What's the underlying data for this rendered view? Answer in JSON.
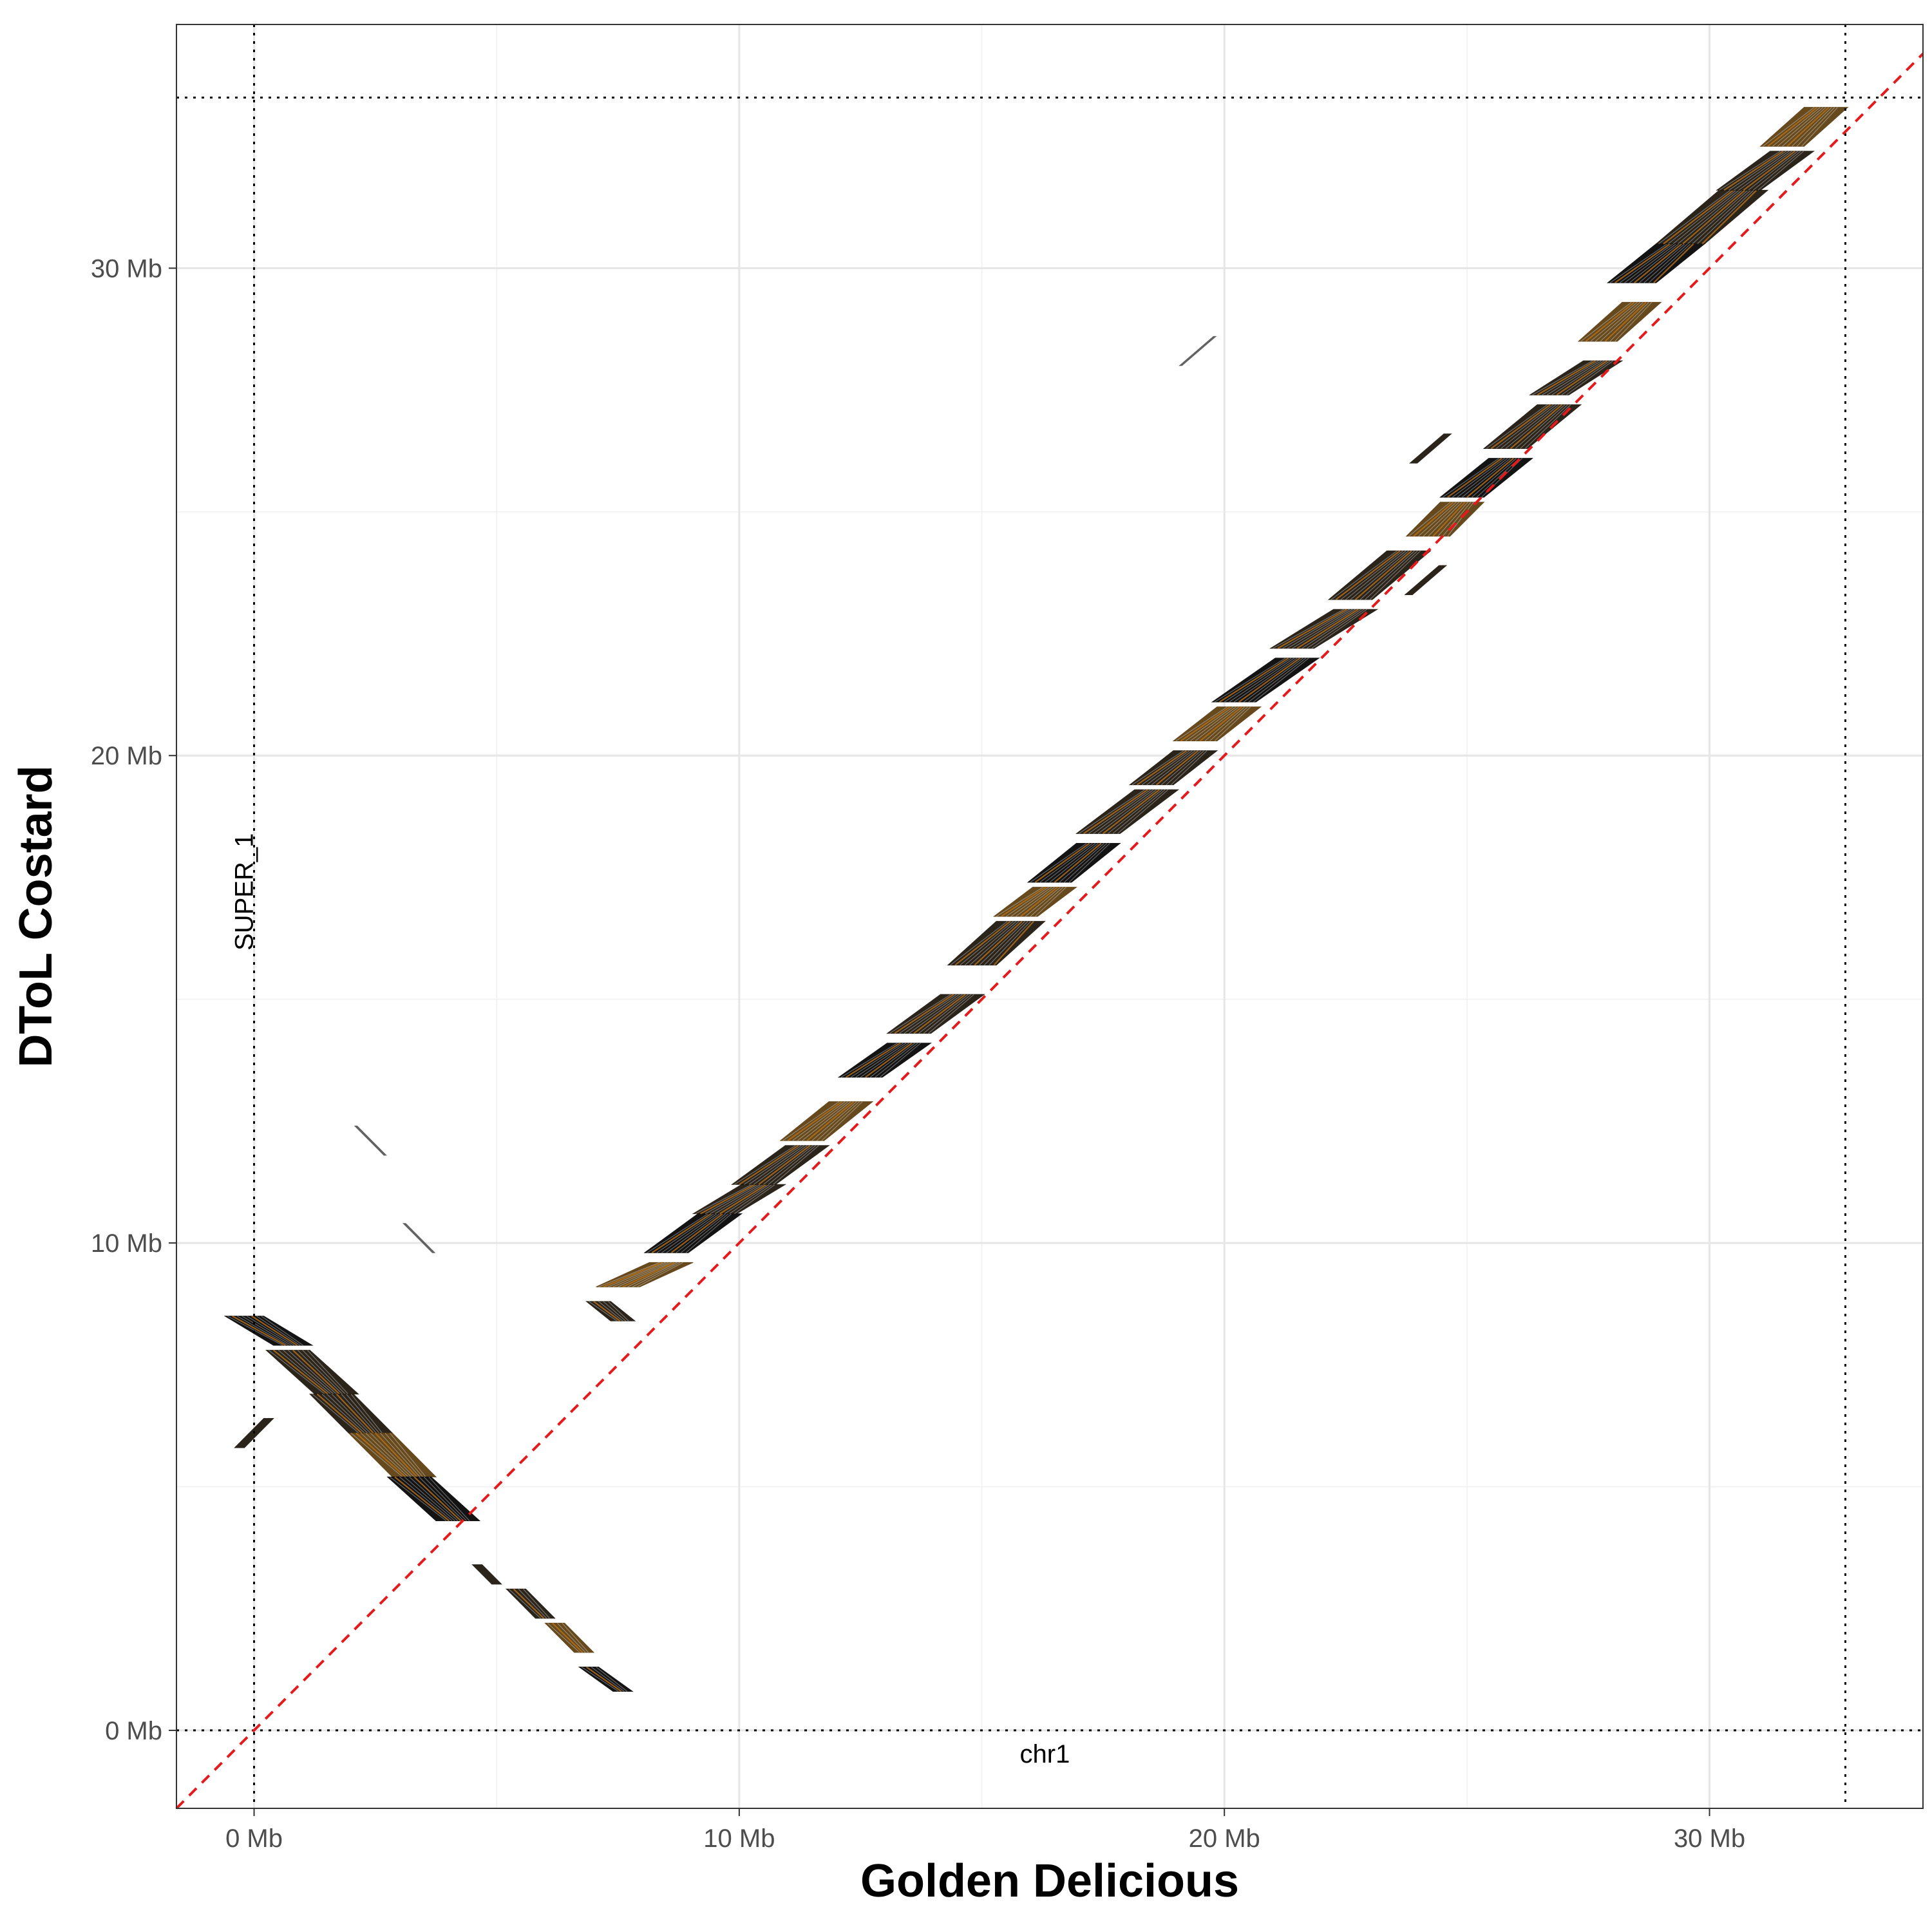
{
  "chart_data": {
    "type": "scatter",
    "xlabel": "Golden Delicious",
    "ylabel": "DToL Costard",
    "x_unit": "Mb",
    "y_unit": "Mb",
    "xlim": [
      -1.6,
      34.4
    ],
    "ylim": [
      -1.6,
      35.0
    ],
    "x_ticks": [
      {
        "value": 0,
        "label": "0 Mb"
      },
      {
        "value": 10,
        "label": "10 Mb"
      },
      {
        "value": 20,
        "label": "20 Mb"
      },
      {
        "value": 30,
        "label": "30 Mb"
      }
    ],
    "y_ticks": [
      {
        "value": 0,
        "label": "0 Mb"
      },
      {
        "value": 10,
        "label": "10 Mb"
      },
      {
        "value": 20,
        "label": "20 Mb"
      },
      {
        "value": 30,
        "label": "30 Mb"
      }
    ],
    "grid": true,
    "sequence_labels": {
      "x": {
        "label": "chr1",
        "value": 16.3
      },
      "y": {
        "label": "SUPER_1",
        "value": 16.0
      }
    },
    "sequence_bounds": {
      "x": [
        0,
        32.8
      ],
      "y": [
        0,
        33.5
      ]
    },
    "reference_line": {
      "type": "diagonal",
      "slope": 1,
      "intercept": 0,
      "color": "#e41a1c"
    },
    "colors": {
      "dark": "#1a1208",
      "brown": "#5a3a0a",
      "orange": "#b8731e",
      "black": "#000000"
    },
    "alignments": [
      {
        "x1": 7.1,
        "y1": 8.8,
        "x2": 7.6,
        "y2": 8.4,
        "w": 0.5
      },
      {
        "x1": 7.5,
        "y1": 9.1,
        "x2": 8.6,
        "y2": 9.6,
        "w": 0.9
      },
      {
        "x1": 8.5,
        "y1": 9.8,
        "x2": 9.6,
        "y2": 10.6,
        "w": 0.9
      },
      {
        "x1": 9.5,
        "y1": 10.6,
        "x2": 10.5,
        "y2": 11.2,
        "w": 0.9
      },
      {
        "x1": 10.3,
        "y1": 11.2,
        "x2": 11.4,
        "y2": 12.0,
        "w": 0.9
      },
      {
        "x1": 11.3,
        "y1": 12.1,
        "x2": 12.3,
        "y2": 12.9,
        "w": 0.9
      },
      {
        "x1": 12.5,
        "y1": 13.4,
        "x2": 13.5,
        "y2": 14.1,
        "w": 0.9
      },
      {
        "x1": 13.5,
        "y1": 14.3,
        "x2": 14.6,
        "y2": 15.1,
        "w": 0.9
      },
      {
        "x1": 14.8,
        "y1": 15.7,
        "x2": 15.8,
        "y2": 16.6,
        "w": 1.0
      },
      {
        "x1": 15.7,
        "y1": 16.7,
        "x2": 16.5,
        "y2": 17.3,
        "w": 0.9
      },
      {
        "x1": 16.4,
        "y1": 17.4,
        "x2": 17.4,
        "y2": 18.2,
        "w": 0.9
      },
      {
        "x1": 17.4,
        "y1": 18.4,
        "x2": 18.6,
        "y2": 19.3,
        "w": 0.9
      },
      {
        "x1": 18.5,
        "y1": 19.4,
        "x2": 19.4,
        "y2": 20.1,
        "w": 0.9
      },
      {
        "x1": 19.4,
        "y1": 20.3,
        "x2": 20.3,
        "y2": 21.0,
        "w": 0.9
      },
      {
        "x1": 20.2,
        "y1": 21.1,
        "x2": 21.5,
        "y2": 22.0,
        "w": 0.9
      },
      {
        "x1": 21.4,
        "y1": 22.2,
        "x2": 22.7,
        "y2": 23.0,
        "w": 0.9
      },
      {
        "x1": 22.6,
        "y1": 23.2,
        "x2": 23.8,
        "y2": 24.2,
        "w": 0.9
      },
      {
        "x1": 24.2,
        "y1": 24.5,
        "x2": 24.9,
        "y2": 25.2,
        "w": 0.9
      },
      {
        "x1": 24.9,
        "y1": 25.3,
        "x2": 25.9,
        "y2": 26.1,
        "w": 0.9
      },
      {
        "x1": 25.8,
        "y1": 26.3,
        "x2": 26.9,
        "y2": 27.2,
        "w": 0.9
      },
      {
        "x1": 26.7,
        "y1": 27.4,
        "x2": 27.8,
        "y2": 28.1,
        "w": 0.8
      },
      {
        "x1": 27.7,
        "y1": 28.5,
        "x2": 28.6,
        "y2": 29.3,
        "w": 0.8
      },
      {
        "x1": 28.4,
        "y1": 29.7,
        "x2": 29.4,
        "y2": 30.5,
        "w": 1.0
      },
      {
        "x1": 29.4,
        "y1": 30.5,
        "x2": 30.7,
        "y2": 31.6,
        "w": 1.0
      },
      {
        "x1": 30.6,
        "y1": 31.6,
        "x2": 31.7,
        "y2": 32.4,
        "w": 0.9
      },
      {
        "x1": 31.5,
        "y1": 32.5,
        "x2": 32.4,
        "y2": 33.3,
        "w": 0.9
      },
      {
        "x1": -0.2,
        "y1": 8.5,
        "x2": 0.8,
        "y2": 7.9,
        "w": 0.8
      },
      {
        "x1": 0.7,
        "y1": 7.8,
        "x2": 1.7,
        "y2": 6.9,
        "w": 0.9
      },
      {
        "x1": 1.6,
        "y1": 6.9,
        "x2": 2.4,
        "y2": 6.1,
        "w": 0.9
      },
      {
        "x1": 2.4,
        "y1": 6.1,
        "x2": 3.3,
        "y2": 5.2,
        "w": 0.9
      },
      {
        "x1": 3.2,
        "y1": 5.2,
        "x2": 4.2,
        "y2": 4.3,
        "w": 0.9
      },
      {
        "x1": 4.6,
        "y1": 3.4,
        "x2": 5.0,
        "y2": 3.0,
        "w": 0.2
      },
      {
        "x1": 5.4,
        "y1": 2.9,
        "x2": 6.0,
        "y2": 2.3,
        "w": 0.4
      },
      {
        "x1": 6.2,
        "y1": 2.2,
        "x2": 6.8,
        "y2": 1.6,
        "w": 0.4
      },
      {
        "x1": 6.9,
        "y1": 1.3,
        "x2": 7.6,
        "y2": 0.8,
        "w": 0.4
      },
      {
        "x1": -0.3,
        "y1": 5.8,
        "x2": 0.3,
        "y2": 6.4,
        "w": 0.2
      },
      {
        "x1": 2.1,
        "y1": 12.4,
        "x2": 2.7,
        "y2": 11.8,
        "w": 0.05
      },
      {
        "x1": 3.1,
        "y1": 10.4,
        "x2": 3.7,
        "y2": 9.8,
        "w": 0.05
      },
      {
        "x1": 19.1,
        "y1": 28.0,
        "x2": 19.8,
        "y2": 28.6,
        "w": 0.05
      },
      {
        "x1": 23.9,
        "y1": 26.0,
        "x2": 24.6,
        "y2": 26.6,
        "w": 0.15
      },
      {
        "x1": 23.8,
        "y1": 23.3,
        "x2": 24.5,
        "y2": 23.9,
        "w": 0.15
      }
    ]
  }
}
